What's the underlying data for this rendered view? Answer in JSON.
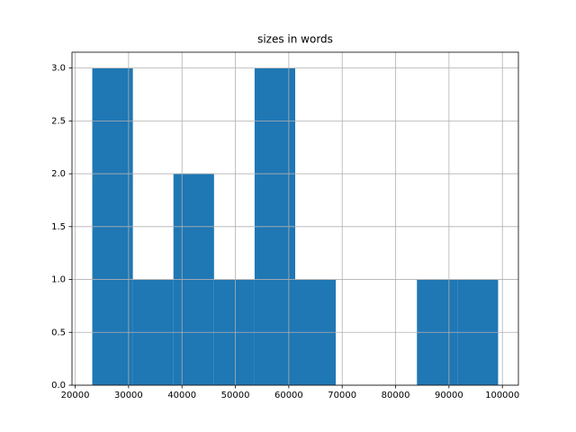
{
  "chart_data": {
    "type": "histogram",
    "title": "sizes in words",
    "bins": [
      23200,
      30800,
      38400,
      46000,
      53600,
      61200,
      68800,
      76400,
      84000,
      91600,
      99200
    ],
    "counts": [
      3,
      1,
      2,
      1,
      3,
      1,
      0,
      0,
      1,
      1
    ],
    "color": "#1f77b4",
    "xlim": [
      19400,
      103000
    ],
    "xticks": [
      20000,
      30000,
      40000,
      50000,
      60000,
      70000,
      80000,
      90000,
      100000
    ],
    "ylim": [
      0,
      3.15
    ],
    "yticks": [
      {
        "value": 0,
        "label": "0.0"
      },
      {
        "value": 0.5,
        "label": "0.5"
      },
      {
        "value": 1,
        "label": "1.0"
      },
      {
        "value": 1.5,
        "label": "1.5"
      },
      {
        "value": 2,
        "label": "2.0"
      },
      {
        "value": 2.5,
        "label": "2.5"
      },
      {
        "value": 3,
        "label": "3.0"
      }
    ],
    "grid": true
  }
}
